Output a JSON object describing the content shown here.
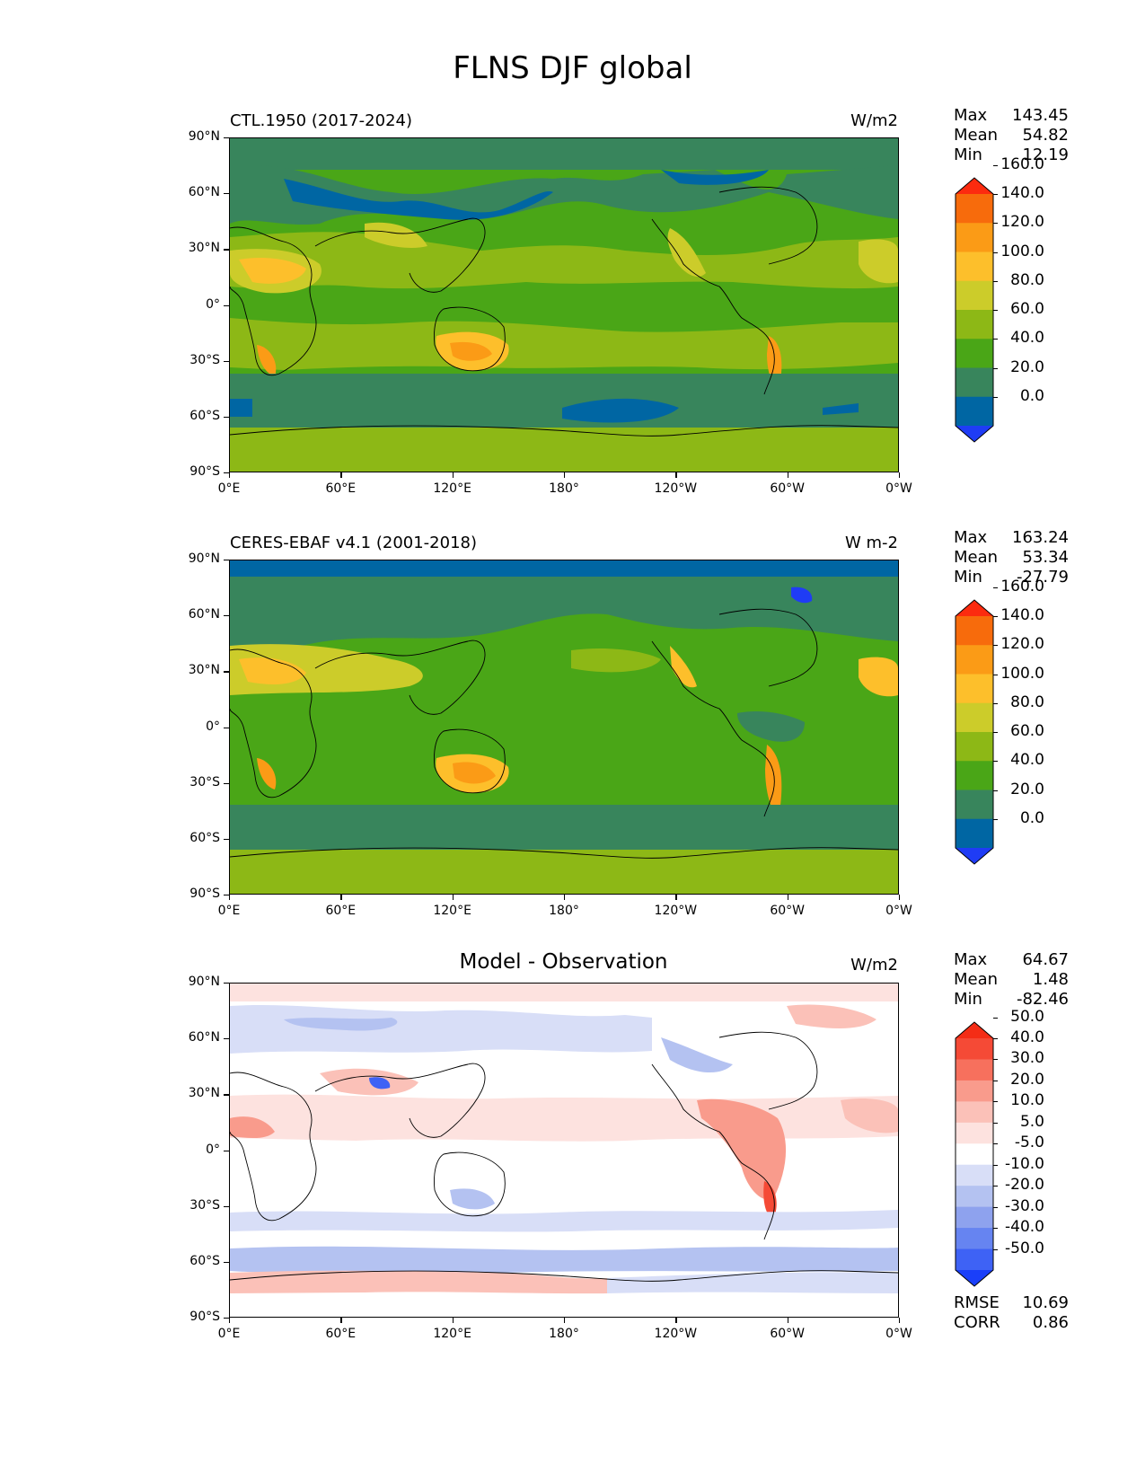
{
  "figure": {
    "title": "FLNS DJF global"
  },
  "panels": [
    {
      "id": "model",
      "left_title": "CTL.1950 (2017-2024)",
      "center_title": "",
      "units": "W/m2",
      "stats": [
        {
          "label": "Max",
          "value": "143.45"
        },
        {
          "label": "Mean",
          "value": "54.82"
        },
        {
          "label": "Min",
          "value": "12.19"
        }
      ],
      "colorbar": {
        "colors": [
          "#1f3cf5",
          "#0066a3",
          "#38855c",
          "#4aa617",
          "#8db816",
          "#cccc2a",
          "#fdbf2b",
          "#fb9b16",
          "#f76b0c",
          "#fc2b0f"
        ],
        "labels": [
          "0.0",
          "20.0",
          "40.0",
          "60.0",
          "80.0",
          "100.0",
          "120.0",
          "140.0",
          "160.0"
        ]
      }
    },
    {
      "id": "obs",
      "left_title": "CERES-EBAF v4.1 (2001-2018)",
      "center_title": "",
      "units": "W m-2",
      "stats": [
        {
          "label": "Max",
          "value": "163.24"
        },
        {
          "label": "Mean",
          "value": "53.34"
        },
        {
          "label": "Min",
          "value": "-27.79"
        }
      ],
      "colorbar": {
        "colors": [
          "#1f3cf5",
          "#0066a3",
          "#38855c",
          "#4aa617",
          "#8db816",
          "#cccc2a",
          "#fdbf2b",
          "#fb9b16",
          "#f76b0c",
          "#fc2b0f"
        ],
        "labels": [
          "0.0",
          "20.0",
          "40.0",
          "60.0",
          "80.0",
          "100.0",
          "120.0",
          "140.0",
          "160.0"
        ]
      }
    },
    {
      "id": "diff",
      "left_title": "",
      "center_title": "Model - Observation",
      "units": "W/m2",
      "stats": [
        {
          "label": "Max",
          "value": "64.67"
        },
        {
          "label": "Mean",
          "value": "1.48"
        },
        {
          "label": "Min",
          "value": "-82.46"
        }
      ],
      "extra_stats": [
        {
          "label": "RMSE",
          "value": "10.69"
        },
        {
          "label": "CORR",
          "value": "0.86"
        }
      ],
      "colorbar": {
        "colors": [
          "#1a3ff9",
          "#3e62f5",
          "#6684f1",
          "#8ea2ee",
          "#b4c2f1",
          "#d8def7",
          "#ffffff",
          "#fde2df",
          "#fbc1b8",
          "#f99b8c",
          "#f7705d",
          "#f54a36",
          "#f42d16"
        ],
        "labels": [
          "-50.0",
          "-40.0",
          "-30.0",
          "-20.0",
          "-10.0",
          "-5.0",
          "5.0",
          "10.0",
          "20.0",
          "30.0",
          "40.0",
          "50.0"
        ]
      }
    }
  ],
  "axes": {
    "lat_labels": [
      "90°N",
      "60°N",
      "30°N",
      "0°",
      "30°S",
      "60°S",
      "90°S"
    ],
    "lon_labels": [
      "0°E",
      "60°E",
      "120°E",
      "180°",
      "120°W",
      "60°W",
      "0°W"
    ]
  }
}
